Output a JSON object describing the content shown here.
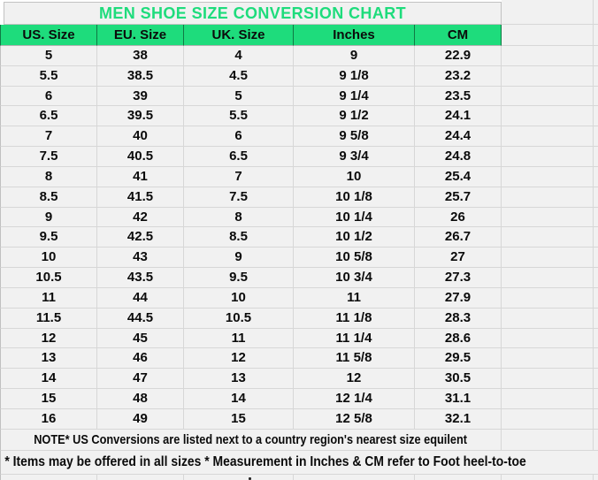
{
  "chart_data": {
    "type": "table",
    "title": "MEN SHOE SIZE CONVERSION CHART",
    "columns": [
      "US. Size",
      "EU. Size",
      "UK. Size",
      "Inches",
      "CM"
    ],
    "rows": [
      [
        "5",
        "38",
        "4",
        "9",
        "22.9"
      ],
      [
        "5.5",
        "38.5",
        "4.5",
        "9 1/8",
        "23.2"
      ],
      [
        "6",
        "39",
        "5",
        "9 1/4",
        "23.5"
      ],
      [
        "6.5",
        "39.5",
        "5.5",
        "9 1/2",
        "24.1"
      ],
      [
        "7",
        "40",
        "6",
        "9 5/8",
        "24.4"
      ],
      [
        "7.5",
        "40.5",
        "6.5",
        "9 3/4",
        "24.8"
      ],
      [
        "8",
        "41",
        "7",
        "10",
        "25.4"
      ],
      [
        "8.5",
        "41.5",
        "7.5",
        "10 1/8",
        "25.7"
      ],
      [
        "9",
        "42",
        "8",
        "10 1/4",
        "26"
      ],
      [
        "9.5",
        "42.5",
        "8.5",
        "10 1/2",
        "26.7"
      ],
      [
        "10",
        "43",
        "9",
        "10 5/8",
        "27"
      ],
      [
        "10.5",
        "43.5",
        "9.5",
        "10 3/4",
        "27.3"
      ],
      [
        "11",
        "44",
        "10",
        "11",
        "27.9"
      ],
      [
        "11.5",
        "44.5",
        "10.5",
        "11 1/8",
        "28.3"
      ],
      [
        "12",
        "45",
        "11",
        "11 1/4",
        "28.6"
      ],
      [
        "13",
        "46",
        "12",
        "11 5/8",
        "29.5"
      ],
      [
        "14",
        "47",
        "13",
        "12",
        "30.5"
      ],
      [
        "15",
        "48",
        "14",
        "12 1/4",
        "31.1"
      ],
      [
        "16",
        "49",
        "15",
        "12 5/8",
        "32.1"
      ]
    ],
    "footnotes": [
      "NOTE* US Conversions are listed next to a country region's nearest size equilent",
      "* Items may be offered in all sizes * Measurement in Inches & CM refer to Foot heel-to-toe"
    ],
    "layout_hints": {
      "grid": true,
      "header_position": "top"
    }
  },
  "colors": {
    "accent_green": "#1edc7c",
    "cell_background": "#f1f1f1",
    "grid_line": "#d7d7d7",
    "outer_border": "#c0c0c0",
    "text": "#0b0b0b"
  }
}
